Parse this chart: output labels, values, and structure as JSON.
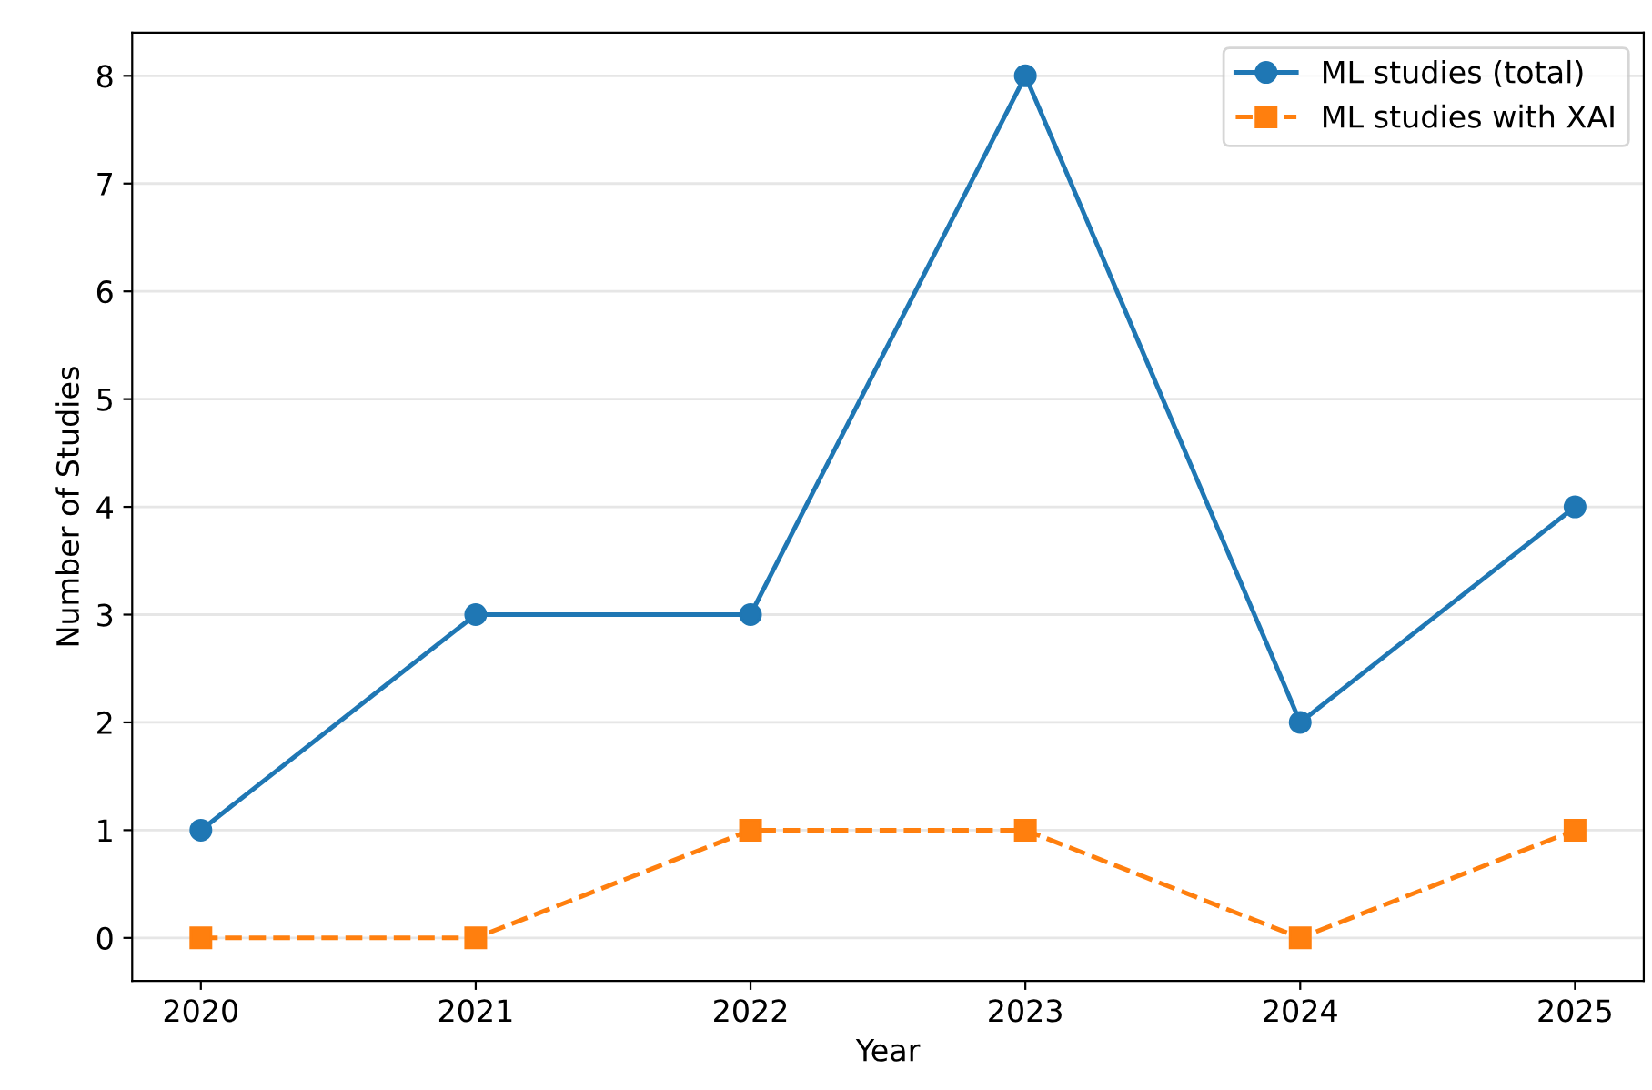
{
  "chart_data": {
    "type": "line",
    "xlabel": "Year",
    "ylabel": "Number of Studies",
    "x": [
      2020,
      2021,
      2022,
      2023,
      2024,
      2025
    ],
    "series": [
      {
        "name": "ML studies (total)",
        "color": "#1f77b4",
        "values": [
          1,
          3,
          3,
          8,
          2,
          4
        ],
        "marker": "circle",
        "line_style": "solid"
      },
      {
        "name": "ML studies with XAI",
        "color": "#ff7f0e",
        "values": [
          0,
          0,
          1,
          1,
          0,
          1
        ],
        "marker": "square",
        "line_style": "dashed"
      }
    ],
    "xlim": [
      2019.75,
      2025.25
    ],
    "xticks": [
      2020,
      2021,
      2022,
      2023,
      2024,
      2025
    ],
    "ylim": [
      -0.4,
      8.4
    ],
    "yticks": [
      0,
      1,
      2,
      3,
      4,
      5,
      6,
      7,
      8
    ],
    "grid": "y",
    "legend": "top right"
  }
}
